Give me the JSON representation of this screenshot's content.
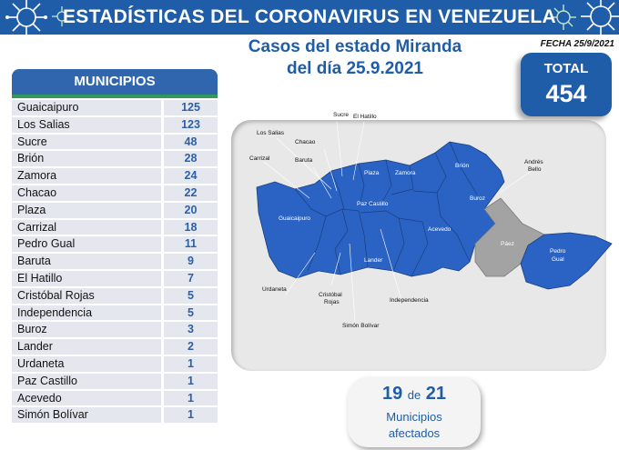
{
  "header": {
    "title": "ESTADÍSTICAS DEL CORONAVIRUS EN VENEZUELA",
    "subtitle_line1": "Casos del estado Miranda",
    "subtitle_line2": "del día 25.9.2021",
    "fecha": "FECHA 25/9/2021"
  },
  "total": {
    "label": "TOTAL",
    "value": "454"
  },
  "table": {
    "header": "MUNICIPIOS",
    "rows": [
      {
        "name": "Guaicaipuro",
        "count": "125"
      },
      {
        "name": "Los Salias",
        "count": "123"
      },
      {
        "name": "Sucre",
        "count": "48"
      },
      {
        "name": "Brión",
        "count": "28"
      },
      {
        "name": "Zamora",
        "count": "24"
      },
      {
        "name": "Chacao",
        "count": "22"
      },
      {
        "name": "Plaza",
        "count": "20"
      },
      {
        "name": "Carrizal",
        "count": "18"
      },
      {
        "name": "Pedro Gual",
        "count": "11"
      },
      {
        "name": "Baruta",
        "count": "9"
      },
      {
        "name": "El Hatillo",
        "count": "7"
      },
      {
        "name": "Cristóbal Rojas",
        "count": "5"
      },
      {
        "name": "Independencia",
        "count": "5"
      },
      {
        "name": "Buroz",
        "count": "3"
      },
      {
        "name": "Lander",
        "count": "2"
      },
      {
        "name": "Urdaneta",
        "count": "1"
      },
      {
        "name": "Paz Castillo",
        "count": "1"
      },
      {
        "name": "Acevedo",
        "count": "1"
      },
      {
        "name": "Simón Bolívar",
        "count": "1"
      }
    ]
  },
  "map": {
    "affected_color": "#2a63c4",
    "unaffected_color": "#a3a3a3",
    "labels": {
      "sucre": "Sucre",
      "el_hatillo": "El Hatillo",
      "los_salias": "Los Salias",
      "chacao": "Chacao",
      "carrizal": "Carrizal",
      "baruta": "Baruta",
      "plaza": "Plaza",
      "zamora": "Zamora",
      "brion": "Brión",
      "andres_bello_1": "Andrés",
      "andres_bello_2": "Bello",
      "buroz": "Buroz",
      "guaicaipuro": "Guaicaipuro",
      "paz_castillo": "Paz Castillo",
      "acevedo": "Acevedo",
      "paez": "Páez",
      "pedro_gual_1": "Pedro",
      "pedro_gual_2": "Gual",
      "lander": "Lander",
      "urdaneta": "Urdaneta",
      "cristobal_rojas_1": "Cristóbal",
      "cristobal_rojas_2": "Rojas",
      "independencia": "Independencia",
      "simon_bolivar": "Simón Bolívar"
    }
  },
  "affected": {
    "count": "19",
    "of_word": "de",
    "total": "21",
    "label_line1": "Municipios",
    "label_line2": "afectados"
  },
  "colors": {
    "brand_blue": "#1f5da8",
    "accent_green": "#2f9a5a"
  }
}
